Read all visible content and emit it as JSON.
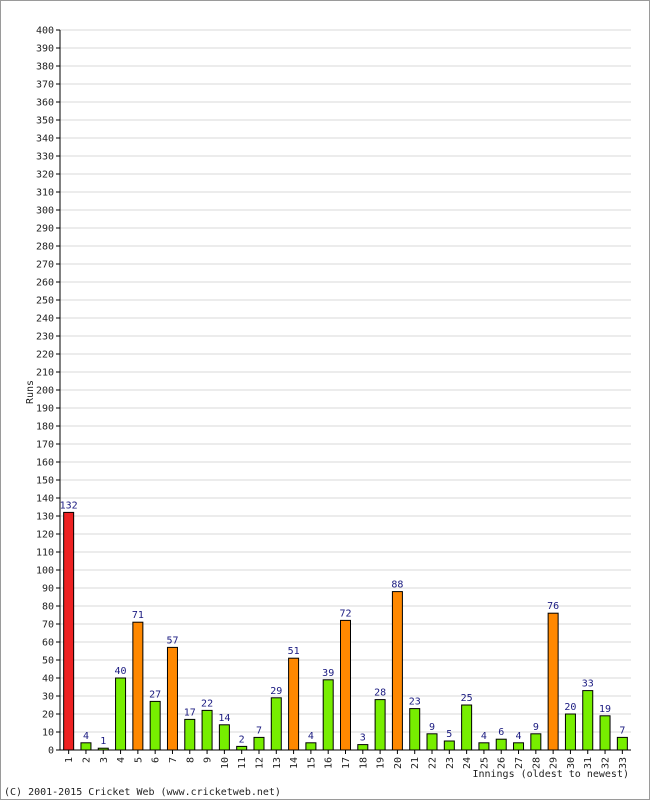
{
  "chart_data": {
    "type": "bar",
    "title": "",
    "xlabel": "Innings (oldest to newest)",
    "ylabel": "Runs",
    "ylim": [
      0,
      400
    ],
    "ytick_step": 10,
    "grid": true,
    "legend": "none",
    "categories": [
      "1",
      "2",
      "3",
      "4",
      "5",
      "6",
      "7",
      "8",
      "9",
      "10",
      "11",
      "12",
      "13",
      "14",
      "15",
      "16",
      "17",
      "18",
      "19",
      "20",
      "21",
      "22",
      "23",
      "24",
      "25",
      "26",
      "27",
      "28",
      "29",
      "30",
      "31",
      "32",
      "33"
    ],
    "values": [
      132,
      4,
      1,
      40,
      71,
      27,
      57,
      17,
      22,
      14,
      2,
      7,
      29,
      51,
      4,
      39,
      72,
      3,
      28,
      88,
      23,
      9,
      5,
      25,
      4,
      6,
      4,
      9,
      76,
      20,
      33,
      19,
      7
    ],
    "data_labels": [
      "132",
      "4",
      "1",
      "40",
      "71",
      "27",
      "57",
      "17",
      "22",
      "14",
      "2",
      "7",
      "29",
      "51",
      "4",
      "39",
      "72",
      "3",
      "28",
      "88",
      "23",
      "9",
      "5",
      "25",
      "4",
      "6",
      "4",
      "9",
      "76",
      "20",
      "33",
      "19",
      "7"
    ],
    "colors": {
      "hundred": "#ee2222",
      "fifty": "#ff8800",
      "under_fifty": "#77ee00",
      "bar_edge": "#000000",
      "grid": "#d8d8d8",
      "label": "#1a1a80"
    }
  },
  "footer": {
    "copyright": "(C) 2001-2015 Cricket Web (www.cricketweb.net)"
  }
}
